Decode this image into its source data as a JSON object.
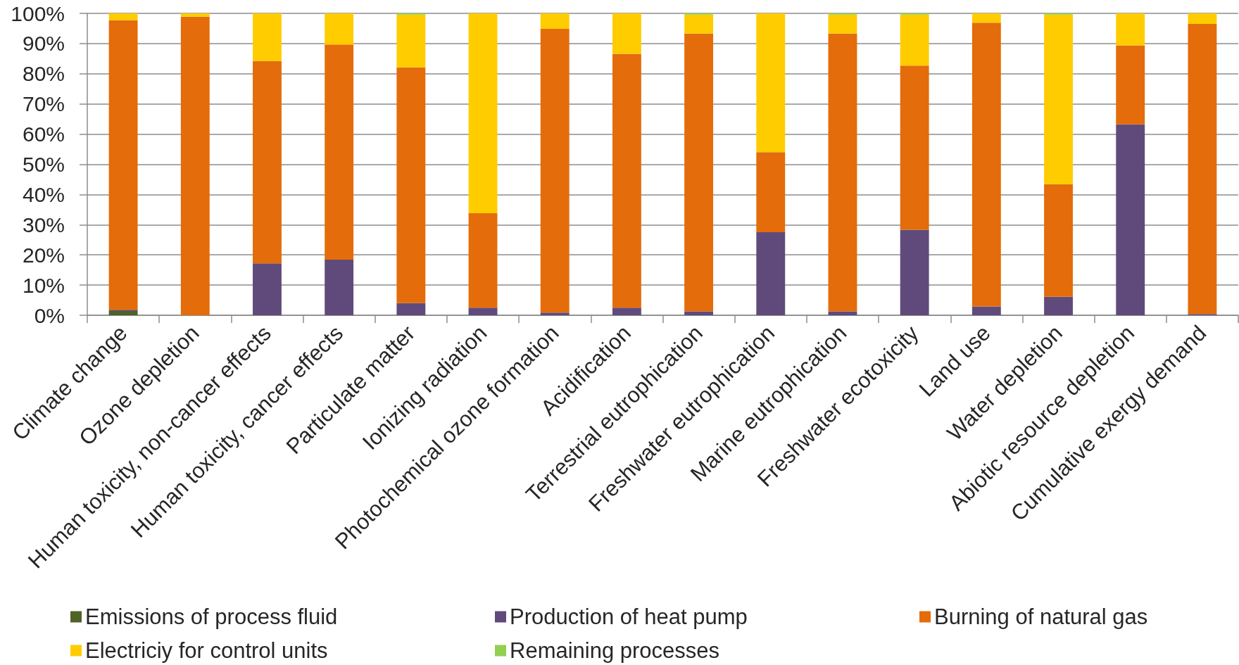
{
  "chart_data": {
    "type": "bar",
    "stacked": true,
    "categories": [
      "Climate change",
      "Ozone depletion",
      "Human toxicity, non-cancer effects",
      "Human toxicity, cancer effects",
      "Particulate matter",
      "Ionizing radiation",
      "Photochemical ozone formation",
      "Acidification",
      "Terrestrial eutrophication",
      "Freshwater eutrophication",
      "Marine eutrophication",
      "Freshwater ecotoxicity",
      "Land use",
      "Water depletion",
      "Abiotic resource depletion",
      "Cumulative exergy demand"
    ],
    "series": [
      {
        "name": "Emissions of process fluid",
        "color": "#4f6228",
        "values": [
          1.4,
          0,
          0,
          0,
          0,
          0,
          0,
          0,
          0,
          0,
          0,
          0,
          0,
          0,
          0,
          0
        ]
      },
      {
        "name": "Production of heat pump",
        "color": "#604a7b",
        "values": [
          0.4,
          0,
          17.2,
          18.4,
          4.0,
          2.5,
          0.9,
          2.5,
          1.3,
          27.5,
          1.3,
          28.3,
          2.9,
          6.1,
          63.2,
          0.4
        ]
      },
      {
        "name": "Burning of natural gas",
        "color": "#e46c0a",
        "values": [
          95.9,
          98.9,
          67.0,
          71.3,
          78.1,
          31.3,
          94.0,
          84.1,
          92.0,
          26.5,
          92.0,
          54.4,
          94.0,
          37.3,
          26.2,
          96.1
        ]
      },
      {
        "name": "Electriciy for control units",
        "color": "#ffcc00",
        "values": [
          2.3,
          1.1,
          15.8,
          10.3,
          17.5,
          66.2,
          5.1,
          13.4,
          6.3,
          46.0,
          6.3,
          16.9,
          3.1,
          56.2,
          10.6,
          3.5
        ]
      },
      {
        "name": "Remaining processes",
        "color": "#92d050",
        "values": [
          0,
          0,
          0,
          0,
          0.4,
          0,
          0,
          0,
          0.4,
          0,
          0.4,
          0.4,
          0,
          0.4,
          0,
          0
        ]
      }
    ],
    "ylim": [
      0,
      100
    ],
    "yticks": [
      {
        "value": 0,
        "label": "0%"
      },
      {
        "value": 10,
        "label": "10%"
      },
      {
        "value": 20,
        "label": "20%"
      },
      {
        "value": 30,
        "label": "30%"
      },
      {
        "value": 40,
        "label": "40%"
      },
      {
        "value": 50,
        "label": "50%"
      },
      {
        "value": 60,
        "label": "60%"
      },
      {
        "value": 70,
        "label": "70%"
      },
      {
        "value": 80,
        "label": "80%"
      },
      {
        "value": 90,
        "label": "90%"
      },
      {
        "value": 100,
        "label": "100%"
      }
    ],
    "grid": "y",
    "legend": "bottom"
  }
}
